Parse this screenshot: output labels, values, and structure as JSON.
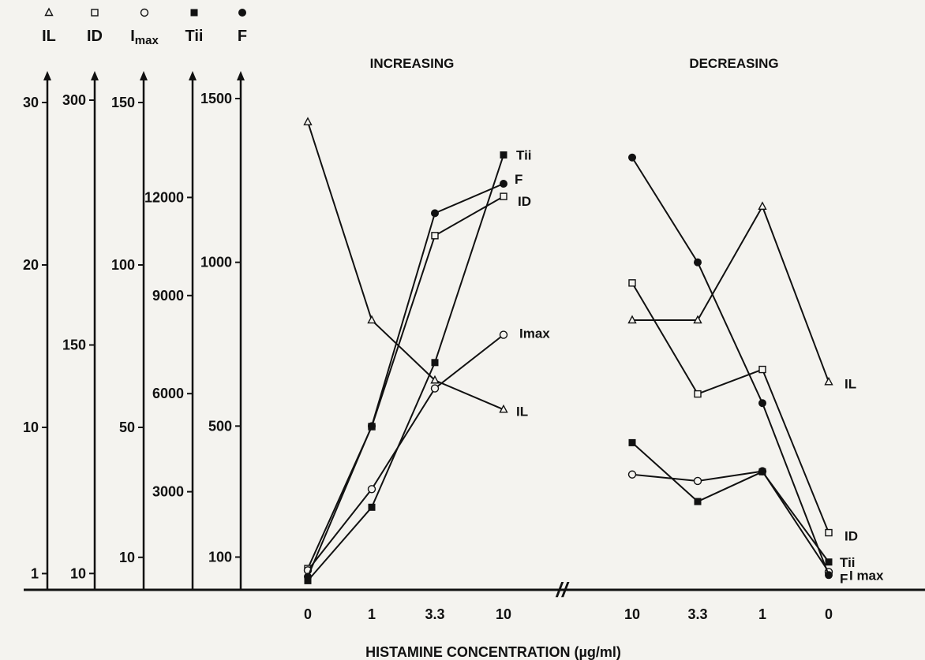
{
  "chart_data": {
    "type": "line",
    "title": "",
    "xlabel": "HISTAMINE  CONCENTRATION (µg/ml)",
    "ylabel": "",
    "break_mark": "//",
    "panels": [
      {
        "heading": "INCREASING",
        "categories": [
          "0",
          "1",
          "3.3",
          "10"
        ]
      },
      {
        "heading": "DECREASING",
        "categories": [
          "10",
          "3.3",
          "1",
          "0"
        ]
      }
    ],
    "axes": [
      {
        "key": "IL",
        "label": "IL",
        "marker": "triangle-open",
        "symbol": "△",
        "label_sub": "",
        "ticks": [
          "1",
          "10",
          "20",
          "30"
        ],
        "ylim": [
          0,
          30
        ]
      },
      {
        "key": "ID",
        "label": "ID",
        "marker": "square-open",
        "symbol": "□",
        "label_sub": "",
        "ticks": [
          "10",
          "150",
          "300"
        ],
        "ylim": [
          0,
          300
        ]
      },
      {
        "key": "Imax",
        "label": "I",
        "label_sub": "max",
        "marker": "circle-open",
        "symbol": "○",
        "ticks": [
          "10",
          "50",
          "100",
          "150"
        ],
        "ylim": [
          0,
          150
        ]
      },
      {
        "key": "Tii",
        "label": "Tii",
        "marker": "square-filled",
        "symbol": "■",
        "label_sub": "",
        "ticks": [
          "3000",
          "6000",
          "9000",
          "12000"
        ],
        "ylim": [
          0,
          15000
        ]
      },
      {
        "key": "F",
        "label": "F",
        "marker": "circle-filled",
        "symbol": "●",
        "label_sub": "",
        "ticks": [
          "100",
          "500",
          "1000",
          "1500"
        ],
        "ylim": [
          0,
          1500
        ]
      }
    ],
    "series": [
      {
        "name": "IL",
        "end_label_increasing": "IL",
        "end_label_decreasing": "IL",
        "increasing": [
          28.8,
          16.6,
          12.9,
          11.1
        ],
        "decreasing": [
          16.6,
          16.6,
          23.6,
          12.8
        ]
      },
      {
        "name": "ID",
        "end_label_increasing": "ID",
        "end_label_decreasing": "ID",
        "increasing": [
          13,
          100,
          217,
          241
        ],
        "decreasing": [
          188,
          120,
          135,
          35
        ]
      },
      {
        "name": "Imax",
        "end_label_increasing": "Imax",
        "end_label_decreasing": "I max",
        "increasing": [
          6,
          31,
          62,
          78.5
        ],
        "decreasing": [
          35.5,
          33.5,
          36.5,
          5.5
        ]
      },
      {
        "name": "Tii",
        "end_label_increasing": "Tii",
        "end_label_decreasing": "Tii",
        "increasing": [
          280,
          2525,
          6950,
          13300
        ],
        "decreasing": [
          4500,
          2700,
          3610,
          850
        ]
      },
      {
        "name": "F",
        "end_label_increasing": "F",
        "end_label_decreasing": "F",
        "increasing": [
          40,
          500,
          1150,
          1240
        ],
        "decreasing": [
          1320,
          1000,
          570,
          45
        ]
      }
    ]
  }
}
